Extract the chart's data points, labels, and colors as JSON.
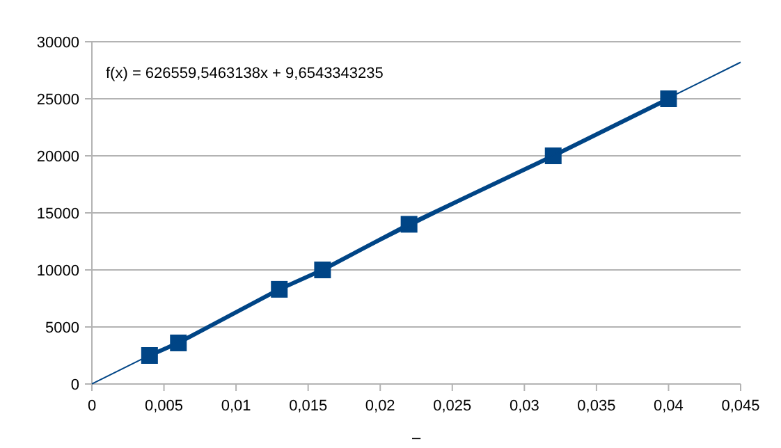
{
  "chart_data": {
    "type": "line",
    "xlabel": "–",
    "annotations": [
      "f(x) = 626559,5463138x + 9,6543343235"
    ],
    "xlim": [
      0,
      0.045
    ],
    "ylim": [
      0,
      30000
    ],
    "xticks": [
      0,
      {
        "value": 0.005,
        "label": "0,005"
      },
      {
        "value": 0.01,
        "label": "0,01"
      },
      {
        "value": 0.015,
        "label": "0,015"
      },
      {
        "value": 0.02,
        "label": "0,02"
      },
      {
        "value": 0.025,
        "label": "0,025"
      },
      {
        "value": 0.03,
        "label": "0,03"
      },
      {
        "value": 0.035,
        "label": "0,035"
      },
      {
        "value": 0.04,
        "label": "0,04"
      },
      {
        "value": 0.045,
        "label": "0,045"
      }
    ],
    "yticks": [
      0,
      5000,
      10000,
      15000,
      20000,
      25000,
      30000
    ],
    "grid": "y",
    "series": [
      {
        "color": "#004586",
        "x": [
          0.004,
          0.006,
          0.013,
          0.016,
          0.022,
          0.032,
          0.04
        ],
        "values": [
          2500,
          3600,
          8300,
          10000,
          14000,
          20000,
          25000
        ],
        "marker": "square",
        "line_style": "solid"
      },
      {
        "type": "line",
        "color": "#004586",
        "x": [
          0,
          0.045
        ],
        "values": [
          10,
          28200
        ],
        "marker": "none",
        "line_style": "solid"
      }
    ]
  }
}
